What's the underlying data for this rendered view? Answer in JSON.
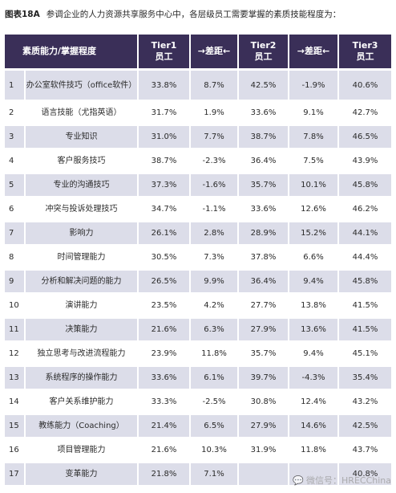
{
  "caption": {
    "label": "图表18A",
    "text": "参调企业的人力资源共享服务中心中，各层级员工需要掌握的素质技能程度为："
  },
  "table": {
    "headers": [
      {
        "line1": "素质能力/掌握程度",
        "line2": ""
      },
      {
        "line1": "Tier1",
        "line2": "员工"
      },
      {
        "line1": "→差距←",
        "line2": ""
      },
      {
        "line1": "Tier2",
        "line2": "员工"
      },
      {
        "line1": "→差距←",
        "line2": ""
      },
      {
        "line1": "Tier3",
        "line2": "员工"
      }
    ],
    "rows": [
      {
        "num": "1",
        "name": "办公室软件技巧（office软件）",
        "t1": "33.8%",
        "d1": "8.7%",
        "t2": "42.5%",
        "d2": "-1.9%",
        "t3": "40.6%"
      },
      {
        "num": "2",
        "name": "语言技能（尤指英语）",
        "t1": "31.7%",
        "d1": "1.9%",
        "t2": "33.6%",
        "d2": "9.1%",
        "t3": "42.7%"
      },
      {
        "num": "3",
        "name": "专业知识",
        "t1": "31.0%",
        "d1": "7.7%",
        "t2": "38.7%",
        "d2": "7.8%",
        "t3": "46.5%"
      },
      {
        "num": "4",
        "name": "客户服务技巧",
        "t1": "38.7%",
        "d1": "-2.3%",
        "t2": "36.4%",
        "d2": "7.5%",
        "t3": "43.9%"
      },
      {
        "num": "5",
        "name": "专业的沟通技巧",
        "t1": "37.3%",
        "d1": "-1.6%",
        "t2": "35.7%",
        "d2": "10.1%",
        "t3": "45.8%"
      },
      {
        "num": "6",
        "name": "冲突与投诉处理技巧",
        "t1": "34.7%",
        "d1": "-1.1%",
        "t2": "33.6%",
        "d2": "12.6%",
        "t3": "46.2%"
      },
      {
        "num": "7",
        "name": "影响力",
        "t1": "26.1%",
        "d1": "2.8%",
        "t2": "28.9%",
        "d2": "15.2%",
        "t3": "44.1%"
      },
      {
        "num": "8",
        "name": "时间管理能力",
        "t1": "30.5%",
        "d1": "7.3%",
        "t2": "37.8%",
        "d2": "6.6%",
        "t3": "44.4%"
      },
      {
        "num": "9",
        "name": "分析和解决问题的能力",
        "t1": "26.5%",
        "d1": "9.9%",
        "t2": "36.4%",
        "d2": "9.4%",
        "t3": "45.8%"
      },
      {
        "num": "10",
        "name": "演讲能力",
        "t1": "23.5%",
        "d1": "4.2%",
        "t2": "27.7%",
        "d2": "13.8%",
        "t3": "41.5%"
      },
      {
        "num": "11",
        "name": "决策能力",
        "t1": "21.6%",
        "d1": "6.3%",
        "t2": "27.9%",
        "d2": "13.6%",
        "t3": "41.5%"
      },
      {
        "num": "12",
        "name": "独立思考与改进流程能力",
        "t1": "23.9%",
        "d1": "11.8%",
        "t2": "35.7%",
        "d2": "9.4%",
        "t3": "45.1%"
      },
      {
        "num": "13",
        "name": "系统程序的操作能力",
        "t1": "33.6%",
        "d1": "6.1%",
        "t2": "39.7%",
        "d2": "-4.3%",
        "t3": "35.4%"
      },
      {
        "num": "14",
        "name": "客户关系维护能力",
        "t1": "33.3%",
        "d1": "-2.5%",
        "t2": "30.8%",
        "d2": "12.4%",
        "t3": "43.2%"
      },
      {
        "num": "15",
        "name": "教练能力（Coaching）",
        "t1": "21.4%",
        "d1": "6.5%",
        "t2": "27.9%",
        "d2": "14.6%",
        "t3": "42.5%"
      },
      {
        "num": "16",
        "name": "项目管理能力",
        "t1": "21.6%",
        "d1": "10.3%",
        "t2": "31.9%",
        "d2": "11.8%",
        "t3": "43.7%"
      },
      {
        "num": "17",
        "name": "变革能力",
        "t1": "21.8%",
        "d1": "7.1%",
        "t2": "",
        "d2": "",
        "t3": "40.8%"
      }
    ]
  },
  "watermark": {
    "icon": "wechat-icon",
    "text": "微信号：HRECChina"
  }
}
